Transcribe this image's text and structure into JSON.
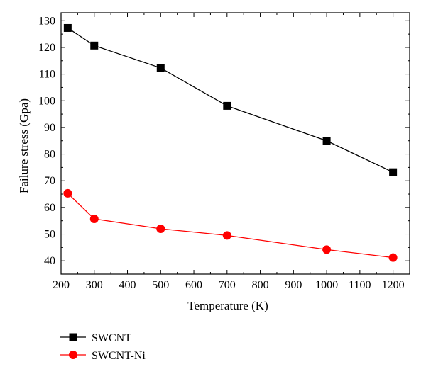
{
  "chart_data": {
    "type": "line",
    "xlabel": "Temperature (K)",
    "ylabel": "Failure stress (Gpa)",
    "xlim": [
      200,
      1250
    ],
    "ylim": [
      35,
      133
    ],
    "xticks": [
      200,
      300,
      400,
      500,
      600,
      700,
      800,
      900,
      1000,
      1100,
      1200
    ],
    "yticks": [
      40,
      50,
      60,
      70,
      80,
      90,
      100,
      110,
      120,
      130
    ],
    "grid": false,
    "legend_position": "below-left",
    "series": [
      {
        "name": "SWCNT",
        "color": "#000000",
        "marker": "square",
        "x": [
          220,
          300,
          500,
          700,
          1000,
          1200
        ],
        "y": [
          127.3,
          120.7,
          112.3,
          98.1,
          85.0,
          73.2
        ]
      },
      {
        "name": "SWCNT-Ni",
        "color": "#ff0000",
        "marker": "circle",
        "x": [
          220,
          300,
          500,
          700,
          1000,
          1200
        ],
        "y": [
          65.3,
          55.7,
          52.0,
          49.5,
          44.2,
          41.2
        ]
      }
    ]
  }
}
